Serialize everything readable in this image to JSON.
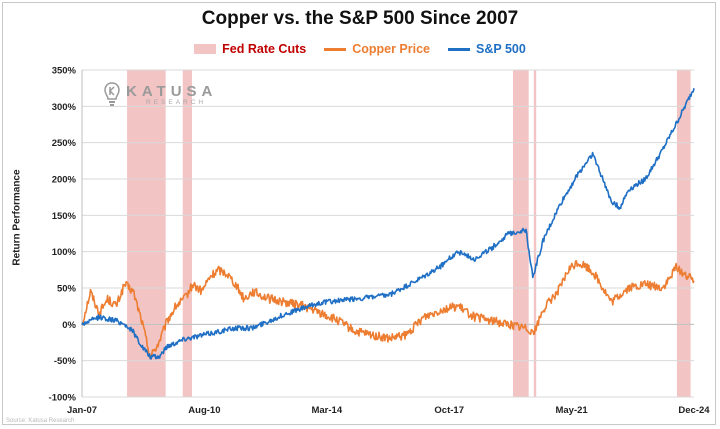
{
  "chart_data": {
    "type": "line",
    "title": "Copper vs. the S&P 500 Since 2007",
    "ylabel": "Return Performance",
    "xlabel": "",
    "yticks": [
      "350%",
      "300%",
      "250%",
      "200%",
      "150%",
      "100%",
      "50%",
      "0%",
      "-50%",
      "-100%"
    ],
    "ylim": [
      -100,
      350
    ],
    "xticks": [
      "Jan-07",
      "Aug-10",
      "Mar-14",
      "Oct-17",
      "May-21",
      "Dec-24"
    ],
    "xlim": [
      2007.0,
      2024.92
    ],
    "grid": true,
    "legend_position": "top-center",
    "legend": [
      {
        "label": "Fed Rate Cuts",
        "kind": "band",
        "color": "#f2c4c4",
        "text_color": "#c00000"
      },
      {
        "label": "Copper Price",
        "kind": "line",
        "color": "#ed7d31",
        "text_color": "#ed7d31"
      },
      {
        "label": "S&P 500",
        "kind": "line",
        "color": "#1f6fc5",
        "text_color": "#1f6fc5"
      }
    ],
    "fed_rate_cut_periods": [
      [
        2008.32,
        2009.45
      ],
      [
        2009.95,
        2010.22
      ],
      [
        2019.62,
        2020.08
      ],
      [
        2020.23,
        2020.3
      ],
      [
        2024.42,
        2024.82
      ]
    ],
    "series": [
      {
        "name": "Copper Price",
        "color": "#ed7d31",
        "x": [
          2007.0,
          2007.25,
          2007.5,
          2007.75,
          2008.0,
          2008.25,
          2008.5,
          2008.75,
          2009.0,
          2009.25,
          2009.5,
          2009.75,
          2010.0,
          2010.25,
          2010.5,
          2010.75,
          2011.0,
          2011.25,
          2011.5,
          2011.75,
          2012.0,
          2012.5,
          2013.0,
          2013.5,
          2014.0,
          2014.5,
          2015.0,
          2015.5,
          2016.0,
          2016.5,
          2017.0,
          2017.5,
          2018.0,
          2018.5,
          2019.0,
          2019.5,
          2020.0,
          2020.25,
          2020.5,
          2021.0,
          2021.25,
          2021.5,
          2021.75,
          2022.0,
          2022.5,
          2023.0,
          2023.5,
          2024.0,
          2024.25,
          2024.4,
          2024.6,
          2024.92
        ],
        "values": [
          0,
          45,
          15,
          35,
          25,
          55,
          45,
          5,
          -45,
          -25,
          5,
          25,
          35,
          55,
          45,
          65,
          75,
          70,
          55,
          35,
          45,
          35,
          30,
          25,
          15,
          5,
          -10,
          -15,
          -20,
          -15,
          10,
          20,
          25,
          10,
          5,
          0,
          -5,
          -10,
          20,
          50,
          75,
          85,
          80,
          70,
          30,
          50,
          55,
          50,
          65,
          80,
          70,
          60
        ]
      },
      {
        "name": "S&P 500",
        "color": "#1f6fc5",
        "x": [
          2007.0,
          2007.5,
          2008.0,
          2008.25,
          2008.5,
          2008.75,
          2009.0,
          2009.25,
          2009.5,
          2010.0,
          2010.5,
          2011.0,
          2011.5,
          2012.0,
          2013.0,
          2014.0,
          2015.0,
          2016.0,
          2017.0,
          2017.5,
          2018.0,
          2018.5,
          2019.0,
          2019.5,
          2020.0,
          2020.2,
          2020.5,
          2021.0,
          2021.5,
          2021.95,
          2022.5,
          2022.75,
          2023.0,
          2023.5,
          2024.0,
          2024.5,
          2024.92
        ],
        "values": [
          0,
          10,
          5,
          0,
          -10,
          -30,
          -45,
          -45,
          -30,
          -20,
          -15,
          -10,
          -5,
          -5,
          15,
          30,
          35,
          40,
          65,
          80,
          100,
          90,
          105,
          125,
          130,
          65,
          115,
          165,
          205,
          235,
          170,
          160,
          185,
          200,
          240,
          285,
          325
        ]
      }
    ]
  },
  "logo": {
    "name": "KATUSA",
    "sub": "RESEARCH",
    "icon": "lightbulb-k-icon"
  },
  "source_text": "Source: Katusa Research"
}
